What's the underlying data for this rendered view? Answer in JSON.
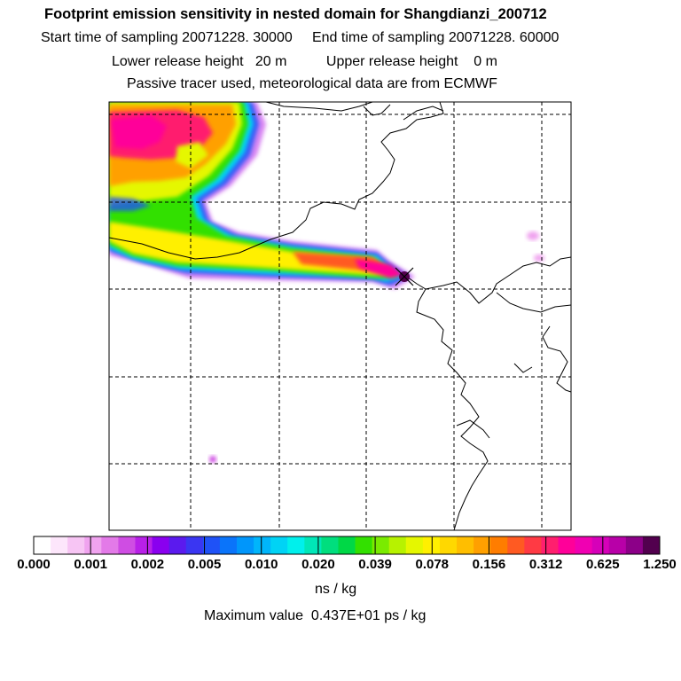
{
  "header": {
    "title": "Footprint emission sensitivity in nested domain for Shangdianzi_200712",
    "line1": "Start time of sampling 20071228. 30000     End time of sampling 20071228. 60000",
    "line2": "Lower release height   20 m          Upper release height    0 m",
    "line3": "Passive tracer used, meteorological data are from ECMWF"
  },
  "legend": {
    "ticks": [
      "0.000",
      "0.001",
      "0.002",
      "0.005",
      "0.010",
      "0.020",
      "0.039",
      "0.078",
      "0.156",
      "0.312",
      "0.625",
      "1.250"
    ],
    "units": "ns / kg",
    "colors": [
      "#ffffff",
      "#fde6fb",
      "#f7c5f4",
      "#f0a3ef",
      "#e37ae8",
      "#cf4de3",
      "#b820e8",
      "#8a00ef",
      "#5b1aee",
      "#3a36f2",
      "#1f52f7",
      "#0a74fa",
      "#0096fb",
      "#00b5fb",
      "#00d3f5",
      "#00f0ec",
      "#00e7b8",
      "#00de7e",
      "#00d846",
      "#33e000",
      "#7aeb00",
      "#b7f200",
      "#e5f700",
      "#fff000",
      "#ffd800",
      "#ffbe00",
      "#ffa000",
      "#ff7d00",
      "#ff5a22",
      "#ff3a44",
      "#ff1f6e",
      "#ff0099",
      "#f000b2",
      "#d600b9",
      "#b800a8",
      "#8c0088",
      "#52004e"
    ],
    "max_value_text": "Maximum value  0.437E+01 ps / kg"
  },
  "map": {
    "receptor_marker": "x-marker",
    "gridlines": "dashed"
  }
}
